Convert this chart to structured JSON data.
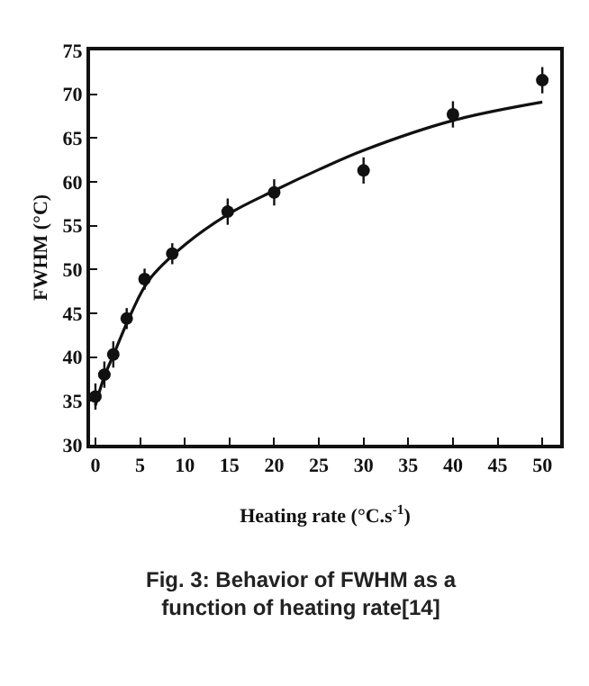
{
  "chart_data": {
    "type": "scatter",
    "xlabel": "Heating rate (°C.s$^{-1}$)",
    "ylabel": "FWHM (°C)",
    "annotations": [
      "Fig. 3: Behavior of FWHM as a function of heating rate[14]"
    ],
    "xlim": [
      -0.6,
      52
    ],
    "xticks": [
      0,
      5,
      10,
      15,
      20,
      25,
      30,
      35,
      40,
      45,
      50
    ],
    "ylim": [
      30,
      75
    ],
    "yticks": [
      30,
      35,
      40,
      45,
      50,
      55,
      60,
      65,
      70,
      75
    ],
    "grid": false,
    "marker": "circle",
    "series": [
      {
        "color": "#111111",
        "x": [
          0,
          1,
          2,
          3.5,
          5.5,
          8.6,
          14.8,
          20,
          30,
          40,
          50
        ],
        "values": [
          35.5,
          38,
          40.3,
          44.4,
          48.9,
          51.8,
          56.6,
          58.8,
          61.3,
          67.7,
          71.6
        ],
        "errors": [
          1.5,
          1.5,
          1.5,
          1.2,
          1.2,
          1.2,
          1.5,
          1.5,
          1.5,
          1.5,
          1.5
        ]
      },
      {
        "type": "line",
        "color": "#111111",
        "marker": "none",
        "line_style": "solid",
        "x": [
          0,
          1,
          2,
          4,
          6,
          10,
          15,
          20,
          25,
          30,
          40,
          50
        ],
        "values": [
          34.5,
          37.8,
          40.2,
          45,
          48.8,
          52.8,
          56.4,
          59,
          61.4,
          63.6,
          67,
          69.1
        ]
      }
    ]
  }
}
